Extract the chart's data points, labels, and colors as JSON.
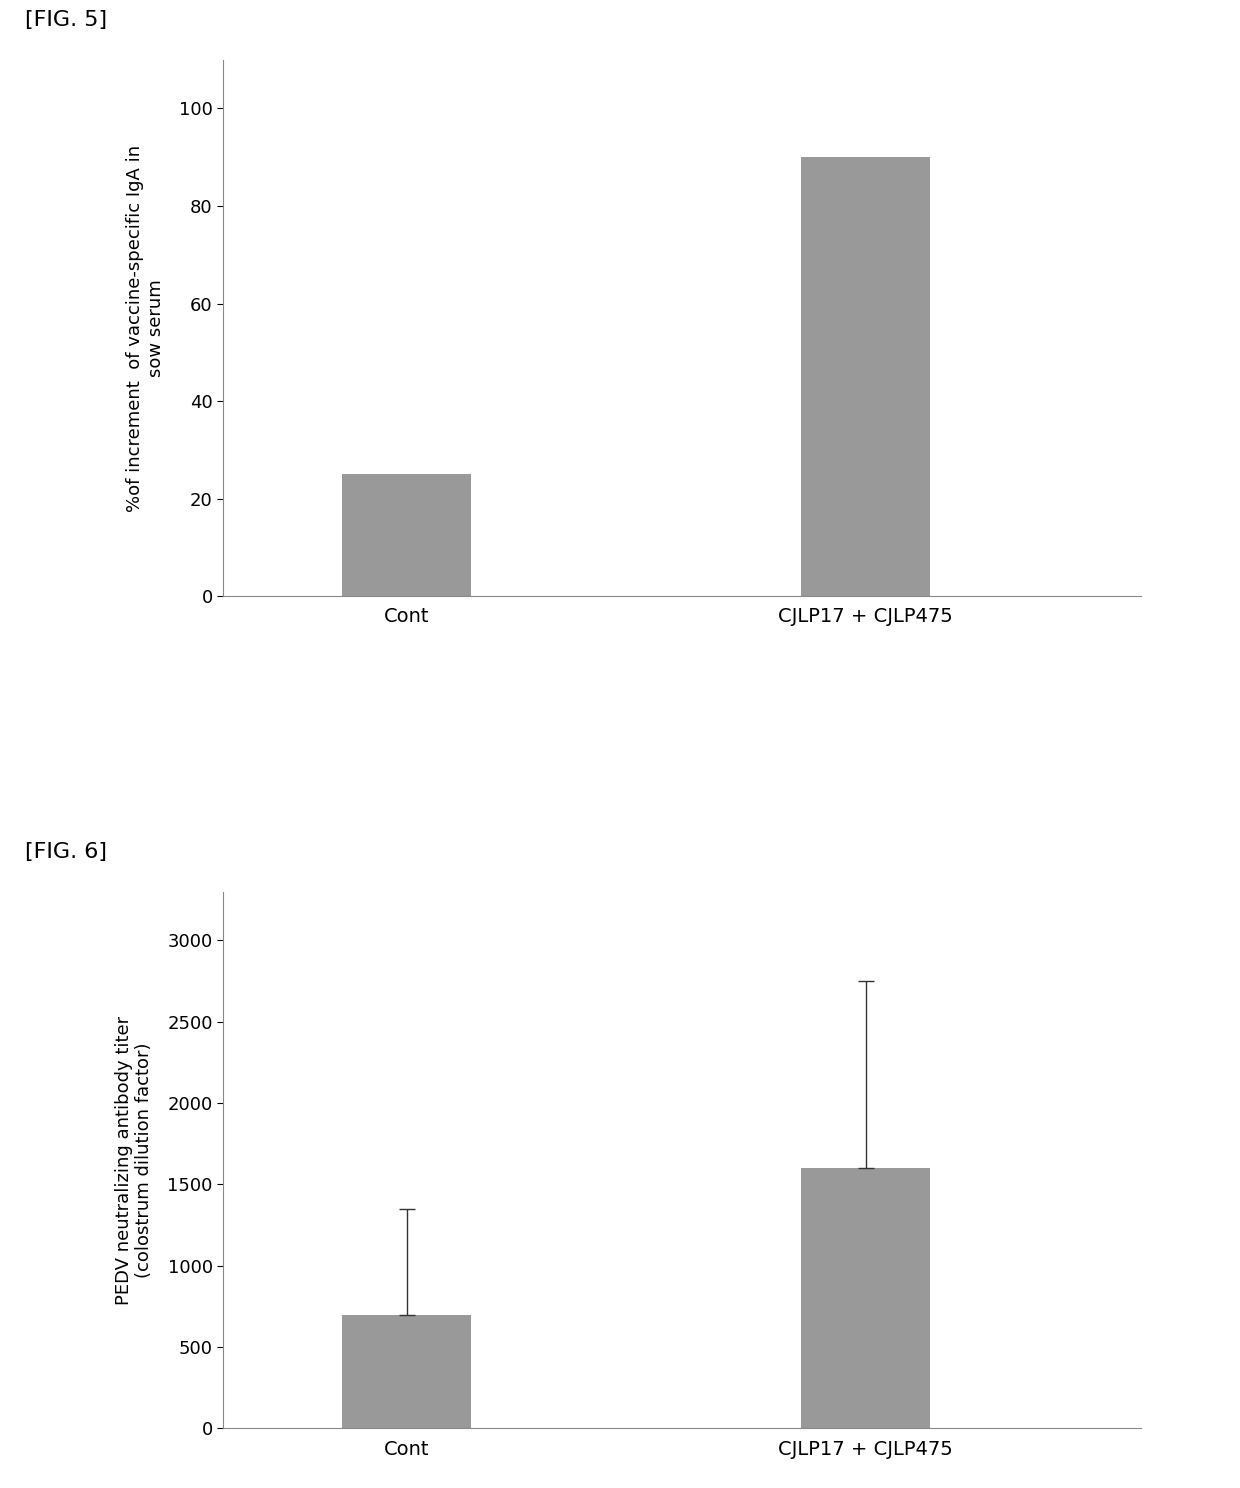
{
  "fig5": {
    "label": "[FIG. 5]",
    "categories": [
      "Cont",
      "CJLP17 + CJLP475"
    ],
    "values": [
      25,
      90
    ],
    "bar_color": "#999999",
    "ylabel_line1": "%of increment  of vaccine-specific IgA in",
    "ylabel_line2": "sow serum",
    "ylim": [
      0,
      110
    ],
    "yticks": [
      0,
      20,
      40,
      60,
      80,
      100
    ],
    "bar_width": 0.28,
    "x_positions": [
      1,
      2
    ]
  },
  "fig6": {
    "label": "[FIG. 6]",
    "categories": [
      "Cont",
      "CJLP17 + CJLP475"
    ],
    "values": [
      700,
      1600
    ],
    "errors_upper": [
      650,
      1150
    ],
    "bar_color": "#999999",
    "ylabel_line1": "PEDV neutralizing antibody titer",
    "ylabel_line2": "(colostrum dilution factor)",
    "ylim": [
      0,
      3300
    ],
    "yticks": [
      0,
      500,
      1000,
      1500,
      2000,
      2500,
      3000
    ],
    "bar_width": 0.28,
    "x_positions": [
      1,
      2
    ]
  },
  "background_color": "#ffffff",
  "label_fontsize": 16,
  "tick_fontsize": 13,
  "ylabel_fontsize": 13,
  "xlabel_fontsize": 14
}
